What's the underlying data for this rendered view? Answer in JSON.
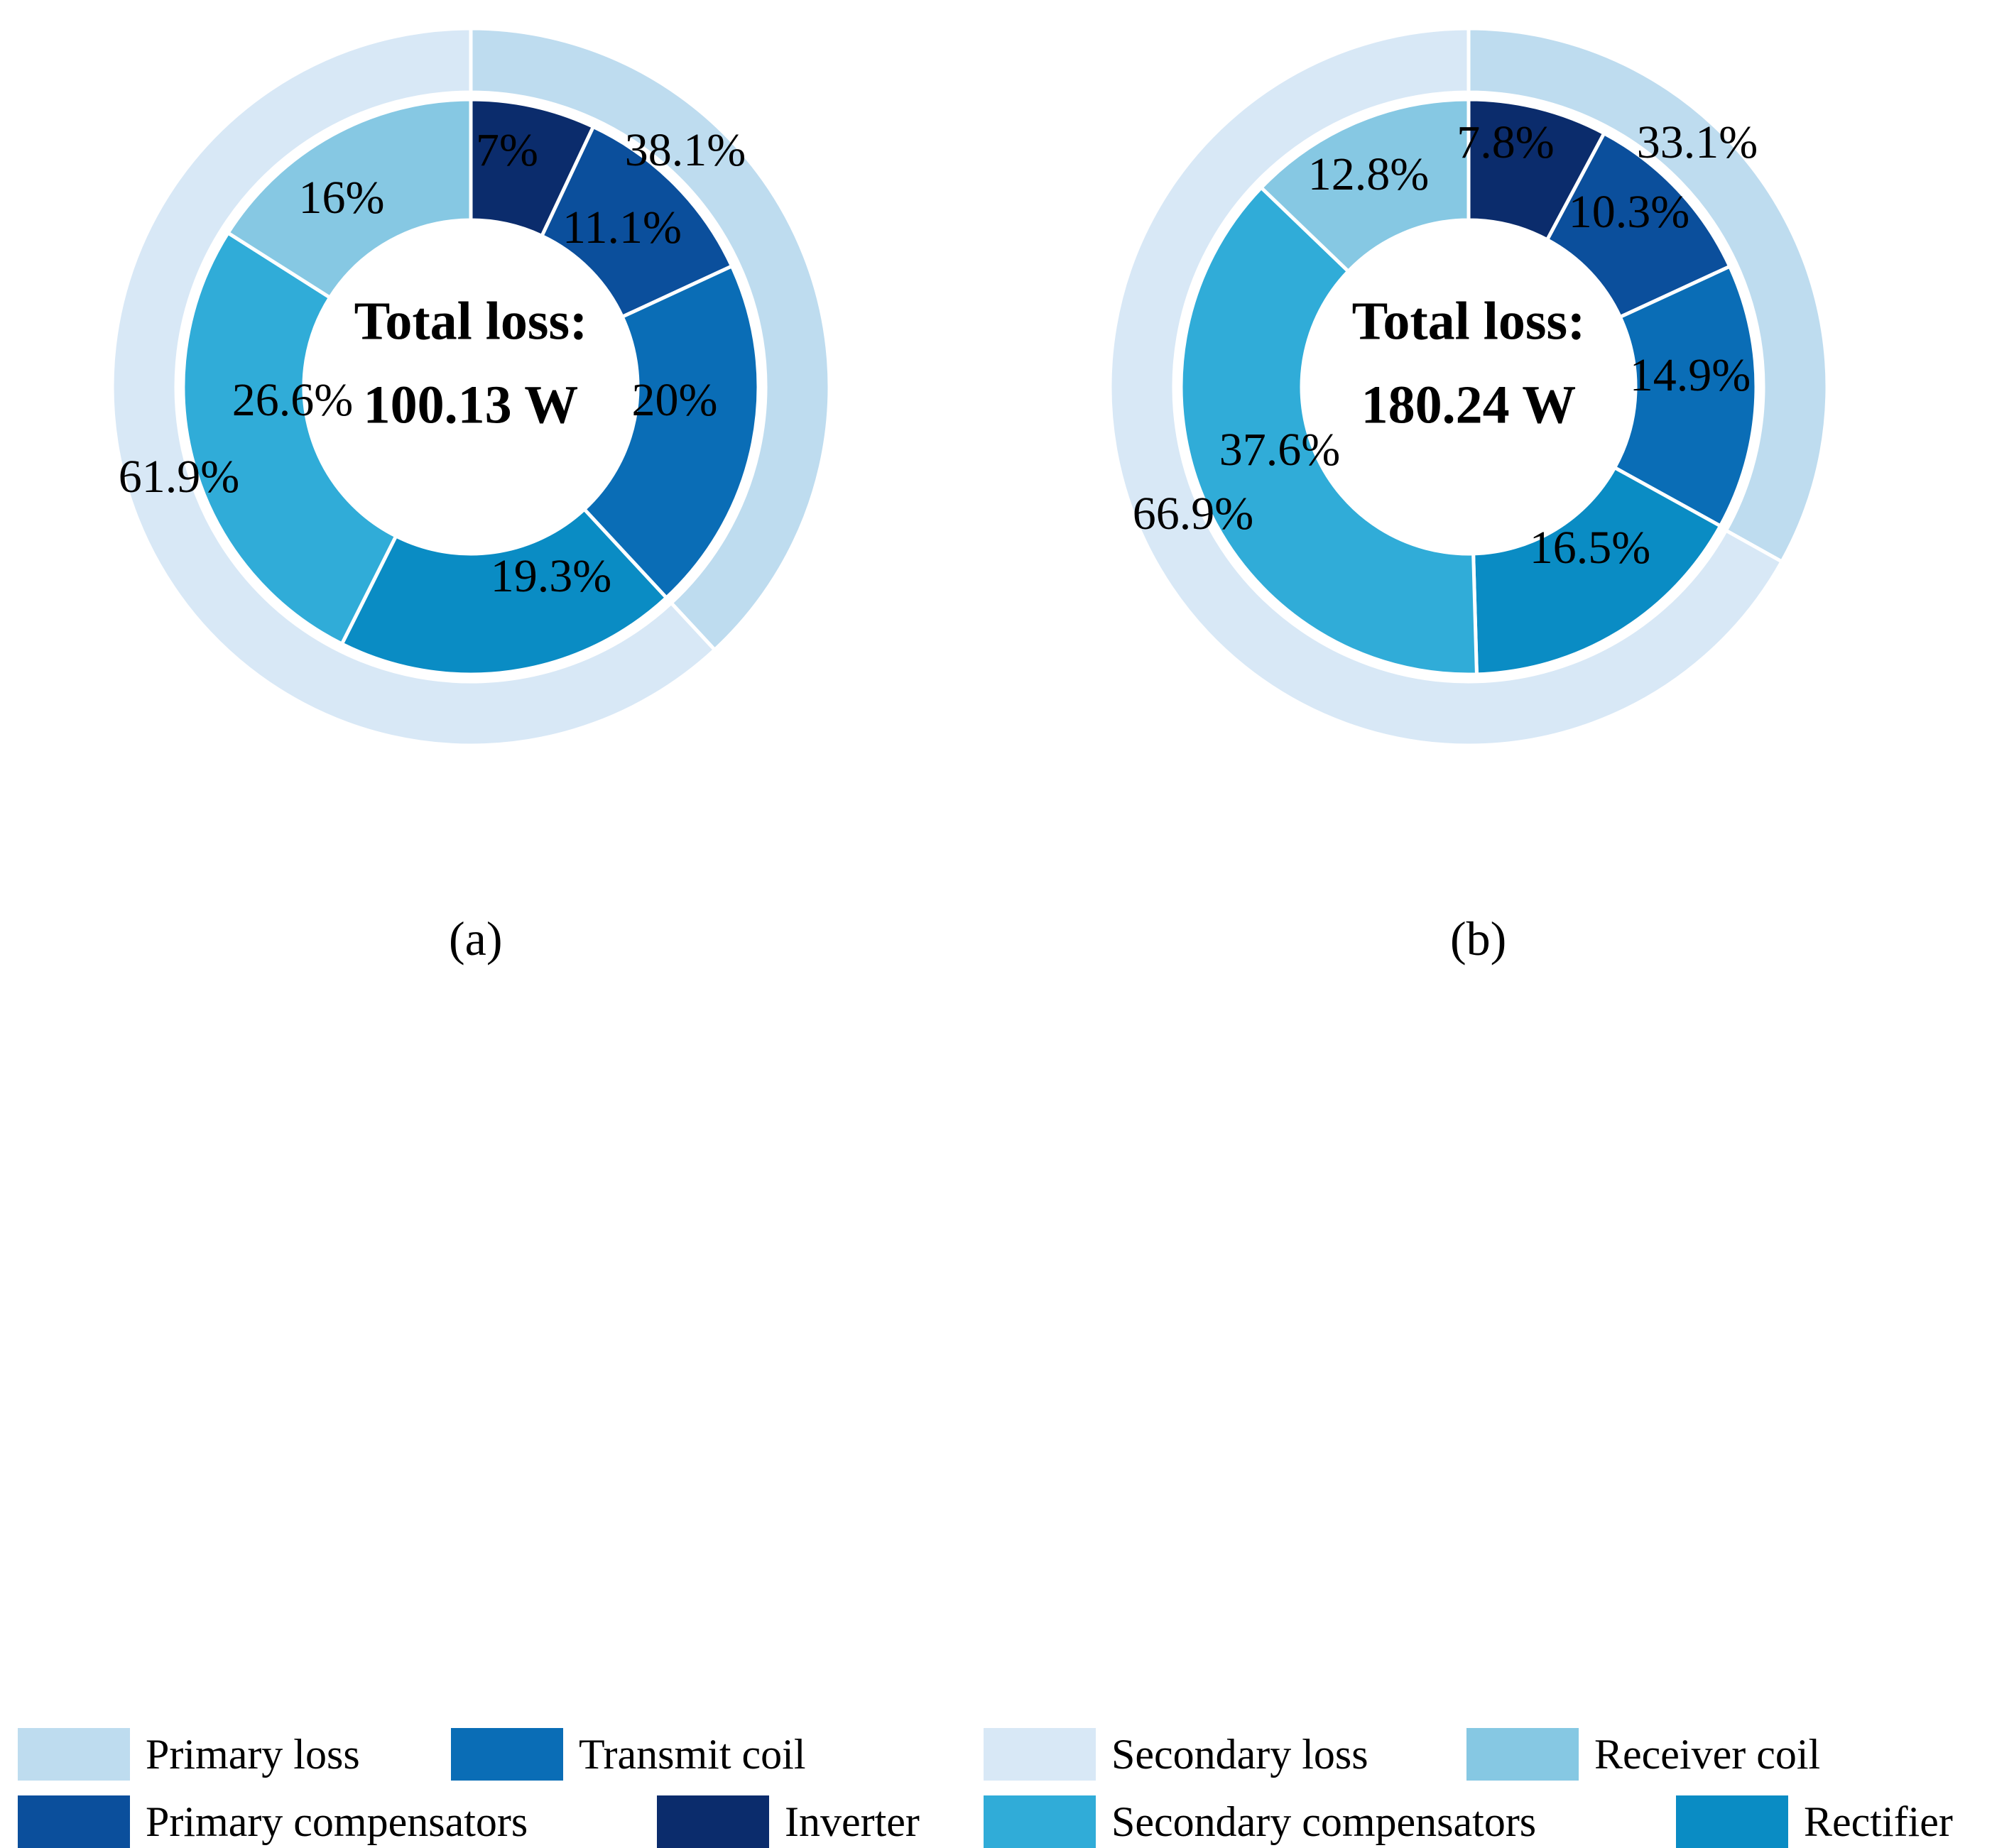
{
  "colors": {
    "primary_loss": "#bedcef",
    "secondary_loss": "#d8e8f6",
    "inverter": "#0b2c6c",
    "primary_compensators": "#0b4f9c",
    "transmit_coil": "#0a6db6",
    "rectifier": "#0a8cc4",
    "secondary_compensators": "#30acd8",
    "receiver_coil": "#86c8e3"
  },
  "chart_data": [
    {
      "type": "pie",
      "subtype": "nested-donut",
      "panel_label": "(a)",
      "center_title": "Total loss:",
      "center_value": "100.13 W",
      "outer_ring": [
        {
          "name": "Primary loss",
          "value": 38.1,
          "label": "38.1%",
          "color_key": "primary_loss"
        },
        {
          "name": "Secondary loss",
          "value": 61.9,
          "label": "61.9%",
          "color_key": "secondary_loss"
        }
      ],
      "inner_ring": [
        {
          "name": "Inverter",
          "value": 7,
          "label": "7%",
          "color_key": "inverter"
        },
        {
          "name": "Primary compensators",
          "value": 11.1,
          "label": "11.1%",
          "color_key": "primary_compensators"
        },
        {
          "name": "Transmit coil",
          "value": 20,
          "label": "20%",
          "color_key": "transmit_coil"
        },
        {
          "name": "Rectifier",
          "value": 19.3,
          "label": "19.3%",
          "color_key": "rectifier"
        },
        {
          "name": "Secondary compensators",
          "value": 26.6,
          "label": "26.6%",
          "color_key": "secondary_compensators"
        },
        {
          "name": "Receiver coil",
          "value": 16,
          "label": "16%",
          "color_key": "receiver_coil"
        }
      ]
    },
    {
      "type": "pie",
      "subtype": "nested-donut",
      "panel_label": "(b)",
      "center_title": "Total loss:",
      "center_value": "180.24 W",
      "outer_ring": [
        {
          "name": "Primary loss",
          "value": 33.1,
          "label": "33.1%",
          "color_key": "primary_loss"
        },
        {
          "name": "Secondary loss",
          "value": 66.9,
          "label": "66.9%",
          "color_key": "secondary_loss"
        }
      ],
      "inner_ring": [
        {
          "name": "Inverter",
          "value": 7.8,
          "label": "7.8%",
          "color_key": "inverter"
        },
        {
          "name": "Primary compensators",
          "value": 10.3,
          "label": "10.3%",
          "color_key": "primary_compensators"
        },
        {
          "name": "Transmit coil",
          "value": 14.9,
          "label": "14.9%",
          "color_key": "transmit_coil"
        },
        {
          "name": "Rectifier",
          "value": 16.5,
          "label": "16.5%",
          "color_key": "rectifier"
        },
        {
          "name": "Secondary compensators",
          "value": 37.6,
          "label": "37.6%",
          "color_key": "secondary_compensators"
        },
        {
          "name": "Receiver coil",
          "value": 12.8,
          "label": "12.8%",
          "color_key": "receiver_coil"
        }
      ]
    }
  ],
  "legend": {
    "primary_loss": "Primary loss",
    "transmit_coil": "Transmit coil",
    "primary_compensators": "Primary compensators",
    "inverter": "Inverter",
    "secondary_loss": "Secondary loss",
    "receiver_coil": "Receiver coil",
    "secondary_compensators": "Secondary compensators",
    "rectifier": "Rectifier"
  }
}
